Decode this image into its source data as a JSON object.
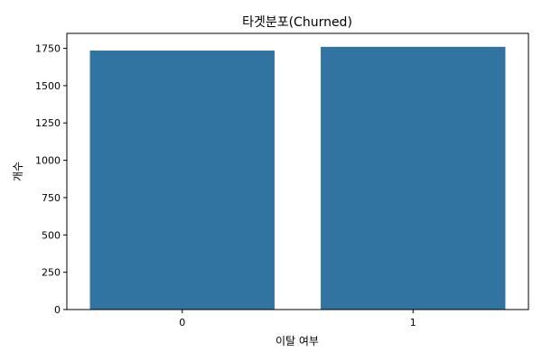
{
  "chart_data": {
    "type": "bar",
    "title": "타겟분포(Churned)",
    "xlabel": "이탈 여부",
    "ylabel": "개수",
    "categories": [
      "0",
      "1"
    ],
    "values": [
      1735,
      1760
    ],
    "ylim": [
      0,
      1850
    ],
    "yticks": [
      0,
      250,
      500,
      750,
      1000,
      1250,
      1500,
      1750
    ],
    "bar_color": "#3274a1",
    "grid": false,
    "legend": "none"
  }
}
